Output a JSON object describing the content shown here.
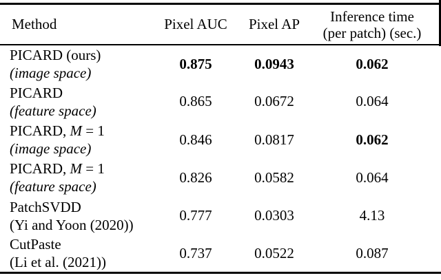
{
  "table": {
    "header": {
      "method": "Method",
      "pixel_auc": "Pixel AUC",
      "pixel_ap": "Pixel AP",
      "inference_line1": "Inference time",
      "inference_line2": "(per patch) (sec.)"
    },
    "rows": [
      {
        "name_pre": "PICARD (ours)",
        "name_var": "",
        "name_post": "",
        "subname": "(image space)",
        "subname_style": "italic",
        "values": [
          {
            "text": "0.875",
            "style": "bold"
          },
          {
            "text": "0.0943",
            "style": "bold"
          },
          {
            "text": "0.062",
            "style": "bold"
          }
        ]
      },
      {
        "name_pre": "PICARD",
        "name_var": "",
        "name_post": "",
        "subname": "(feature space)",
        "subname_style": "italic",
        "values": [
          {
            "text": "0.865",
            "style": "normal"
          },
          {
            "text": "0.0672",
            "style": "normal"
          },
          {
            "text": "0.064",
            "style": "normal"
          }
        ]
      },
      {
        "name_pre": "PICARD, ",
        "name_var": "M",
        "name_post": " = 1",
        "subname": "(image space)",
        "subname_style": "italic",
        "values": [
          {
            "text": "0.846",
            "style": "normal"
          },
          {
            "text": "0.0817",
            "style": "normal"
          },
          {
            "text": "0.062",
            "style": "bold"
          }
        ]
      },
      {
        "name_pre": "PICARD, ",
        "name_var": "M",
        "name_post": " = 1",
        "subname": "(feature space)",
        "subname_style": "italic",
        "values": [
          {
            "text": "0.826",
            "style": "normal"
          },
          {
            "text": "0.0582",
            "style": "normal"
          },
          {
            "text": "0.064",
            "style": "normal"
          }
        ]
      },
      {
        "name_pre": "PatchSVDD",
        "name_var": "",
        "name_post": "",
        "subname": "(Yi and Yoon (2020))",
        "subname_style": "roman",
        "values": [
          {
            "text": "0.777",
            "style": "normal"
          },
          {
            "text": "0.0303",
            "style": "normal"
          },
          {
            "text": "4.13",
            "style": "normal"
          }
        ]
      },
      {
        "name_pre": "CutPaste",
        "name_var": "",
        "name_post": "",
        "subname": "(Li et al. (2021))",
        "subname_style": "roman",
        "values": [
          {
            "text": "0.737",
            "style": "normal"
          },
          {
            "text": "0.0522",
            "style": "normal"
          },
          {
            "text": "0.087",
            "style": "normal"
          }
        ]
      }
    ]
  }
}
